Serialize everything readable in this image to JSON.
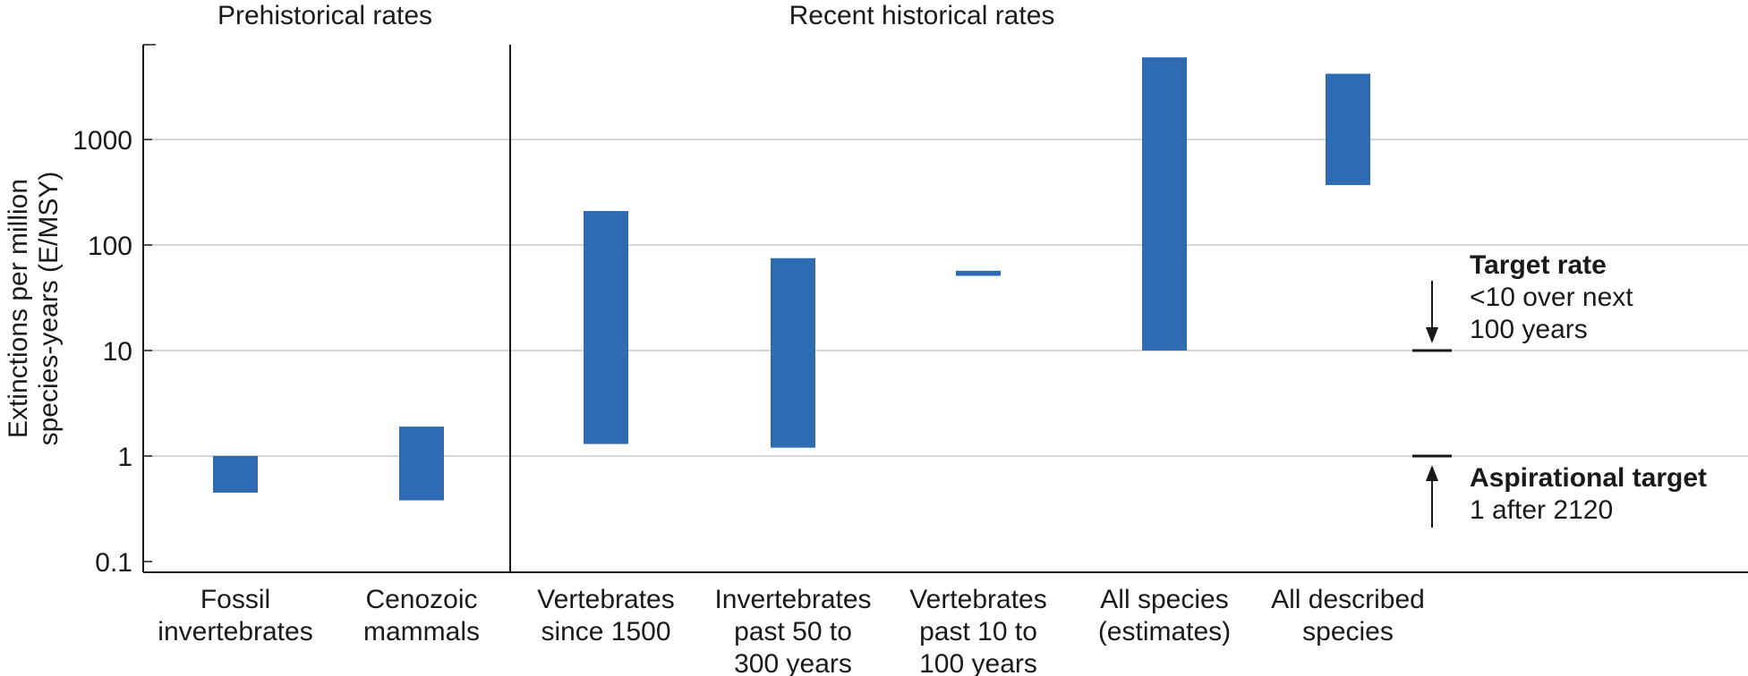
{
  "chart_data": {
    "type": "range-bar",
    "y_scale": "log",
    "ylim": [
      0.1,
      6000
    ],
    "ylabel_line1": "Extinctions per million",
    "ylabel_line2": "species-years (E/MSY)",
    "y_ticks": [
      {
        "value": 0.1,
        "label": "0.1"
      },
      {
        "value": 1,
        "label": "1"
      },
      {
        "value": 10,
        "label": "10"
      },
      {
        "value": 100,
        "label": "100"
      },
      {
        "value": 1000,
        "label": "1000"
      }
    ],
    "grid": true,
    "groups": [
      {
        "label": "Prehistorical rates",
        "categories": [
          0,
          1
        ]
      },
      {
        "label": "Recent historical rates",
        "categories": [
          2,
          3,
          4,
          5,
          6
        ]
      }
    ],
    "categories": [
      {
        "lines": [
          "Fossil",
          "invertebrates"
        ],
        "low": 0.45,
        "high": 1.0
      },
      {
        "lines": [
          "Cenozoic",
          "mammals"
        ],
        "low": 0.38,
        "high": 1.9
      },
      {
        "lines": [
          "Vertebrates",
          "since 1500"
        ],
        "low": 1.3,
        "high": 210
      },
      {
        "lines": [
          "Invertebrates",
          "past 50 to",
          "300 years"
        ],
        "low": 1.2,
        "high": 75
      },
      {
        "lines": [
          "Vertebrates",
          "past 10 to",
          "100 years"
        ],
        "low": 51,
        "high": 57
      },
      {
        "lines": [
          "All species",
          "(estimates)"
        ],
        "low": 10,
        "high": 6000
      },
      {
        "lines": [
          "All described",
          "species"
        ],
        "low": 370,
        "high": 4200
      }
    ],
    "bar_color": "#2e6bb3",
    "targets": [
      {
        "value": 10,
        "title": "Target rate",
        "lines": [
          "<10 over next",
          "100 years"
        ],
        "arrow": "down"
      },
      {
        "value": 1,
        "title": "Aspirational target",
        "lines": [
          "1 after 2120"
        ],
        "arrow": "up"
      }
    ]
  }
}
